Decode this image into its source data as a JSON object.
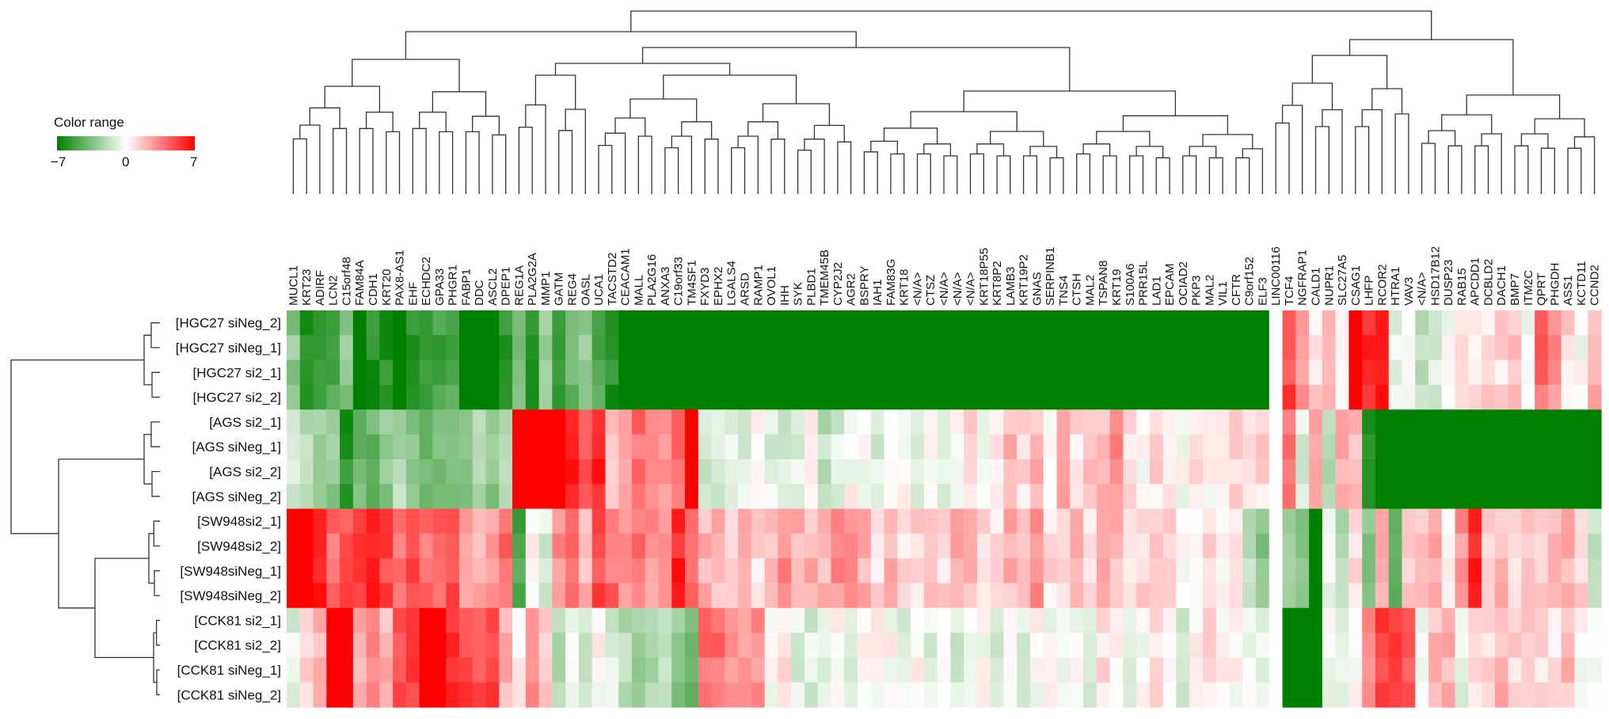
{
  "chart_data": {
    "type": "heatmap",
    "legend": {
      "title": "Color range",
      "min_label": "−7",
      "mid_label": "0",
      "max_label": "7",
      "min": -7,
      "max": 7,
      "colors": {
        "low": "#008000",
        "mid": "#ffffff",
        "high": "#ff0000"
      }
    },
    "rows": [
      "[HGC27 siNeg_2]",
      "[HGC27 siNeg_1]",
      "[HGC27 si2_1]",
      "[HGC27 si2_2]",
      "[AGS si2_1]",
      "[AGS siNeg_1]",
      "[AGS si2_2]",
      "[AGS siNeg_2]",
      "[SW948si2_1]",
      "[SW948si2_2]",
      "[SW948siNeg_1]",
      "[SW948siNeg_2]",
      "[CCK81 si2_1]",
      "[CCK81 si2_2]",
      "[CCK81 siNeg_1]",
      "[CCK81 siNeg_2]"
    ],
    "columns": [
      "MUCL1",
      "KRT23",
      "ADIRF",
      "LCN2",
      "C15orf48",
      "FAM84A",
      "CDH1",
      "KRT20",
      "PAX8-AS1",
      "EHF",
      "ECHDC2",
      "GPA33",
      "PHGR1",
      "FABP1",
      "DDC",
      "ASCL2",
      "DPEP1",
      "REG1A",
      "PLA2G2A",
      "MMP1",
      "GATM",
      "REG4",
      "OASL",
      "UCA1",
      "TACSTD2",
      "CEACAM1",
      "MALL",
      "PLA2G16",
      "ANXA3",
      "C19orf33",
      "TM4SF1",
      "FXYD3",
      "EPHX2",
      "LGALS4",
      "ARSD",
      "RAMP1",
      "OVOL1",
      "IHH",
      "SYK",
      "PLBD1",
      "TMEM45B",
      "CYP2J2",
      "AGR2",
      "BSPRY",
      "IAH1",
      "FAM83G",
      "KRT18",
      "<N/A>",
      "CTSZ",
      "<N/A>",
      "<N/A>",
      "<N/A>",
      "KRT18P55",
      "KRT8P2",
      "LAMB3",
      "KRT19P2",
      "GNAS",
      "SERPINB1",
      "TNS4",
      "CTSH",
      "MAL2",
      "TSPAN8",
      "KRT19",
      "S100A6",
      "PRR15L",
      "LAD1",
      "EPCAM",
      "OCIAD2",
      "PKP3",
      "MAL2",
      "VIL1",
      "CFTR",
      "C9orf152",
      "ELF3",
      "LINC00116",
      "TCF4",
      "NGFRAP1",
      "CALD1",
      "NUPR1",
      "SLC27A5",
      "CSAG1",
      "LHFP",
      "RCOR2",
      "HTRA1",
      "VAV3",
      "<N/A>",
      "HSD17B12",
      "DUSP23",
      "RAB15",
      "APCDD1",
      "DCBLD2",
      "DACH1",
      "BMP7",
      "ITM2C",
      "QPRT",
      "PHGDH",
      "ASS1",
      "KCTD11",
      "CCND2"
    ],
    "row_groups": [
      {
        "rows": [
          0,
          1,
          2,
          3
        ]
      },
      {
        "rows": [
          4,
          5,
          6,
          7
        ]
      },
      {
        "rows": [
          8,
          9,
          10,
          11
        ]
      },
      {
        "rows": [
          12,
          13,
          14,
          15
        ]
      }
    ],
    "group_column_values": [
      [
        -3,
        -6,
        -5,
        -5,
        -3,
        -7,
        -6,
        -6,
        -7,
        -6,
        -6,
        -5,
        -5,
        -7,
        -7,
        -7,
        -6,
        -4,
        -6,
        -3,
        -5,
        -4,
        -3,
        -5,
        -6,
        -7,
        -7,
        -7,
        -7,
        -7,
        -7,
        -7,
        -7,
        -7,
        -7,
        -7,
        -7,
        -7,
        -7,
        -7,
        -7,
        -7,
        -7,
        -7,
        -7,
        -7,
        -7,
        -7,
        -7,
        -7,
        -7,
        -7,
        -7,
        -7,
        -7,
        -7,
        -7,
        -7,
        -7,
        -7,
        -7,
        -7,
        -7,
        -7,
        -7,
        -7,
        -7,
        -7,
        -7,
        -7,
        -7,
        -7,
        -7,
        -7,
        0,
        5,
        3,
        1,
        2,
        0,
        7,
        6,
        6,
        -1,
        0,
        -2,
        -1,
        0,
        1,
        1,
        1,
        1,
        2,
        0,
        4,
        3,
        1,
        0,
        2
      ],
      [
        -1,
        -2,
        -3,
        -3,
        -6,
        -4,
        -4,
        -3,
        -2,
        -3,
        -4,
        -4,
        -3,
        -3,
        -2,
        -3,
        -2,
        7,
        7,
        7,
        7,
        6,
        5,
        6,
        2,
        3,
        4,
        3,
        3,
        4,
        7,
        -1,
        -1,
        -1,
        -1,
        0,
        -1,
        -1,
        -1,
        0,
        -2,
        -1,
        0,
        0,
        -1,
        0,
        0,
        -1,
        0,
        -1,
        0,
        1,
        0,
        1,
        2,
        1,
        2,
        0,
        2,
        1,
        2,
        2,
        3,
        1,
        0,
        1,
        1,
        0,
        1,
        0,
        1,
        1,
        1,
        1,
        0,
        4,
        -1,
        3,
        -2,
        2,
        2,
        -6,
        -7,
        -7,
        -7,
        -7,
        -7,
        -7,
        -7,
        -7,
        -7,
        -7,
        -7,
        -7,
        -7,
        -7,
        -7,
        -7,
        -7
      ],
      [
        7,
        7,
        6,
        4,
        5,
        5,
        6,
        5,
        4,
        5,
        4,
        4,
        5,
        3,
        2,
        3,
        4,
        -5,
        0,
        -1,
        3,
        4,
        2,
        5,
        4,
        3,
        4,
        3,
        3,
        6,
        4,
        2,
        2,
        1,
        2,
        1,
        2,
        3,
        2,
        2,
        2,
        3,
        3,
        2,
        1,
        2,
        1,
        1,
        2,
        1,
        2,
        2,
        1,
        1,
        2,
        2,
        3,
        1,
        1,
        2,
        1,
        2,
        2,
        1,
        1,
        1,
        1,
        0,
        0,
        1,
        0,
        1,
        -2,
        -3,
        0,
        -3,
        -3,
        -7,
        -1,
        -2,
        1,
        -3,
        2,
        -4,
        1,
        2,
        2,
        0,
        3,
        6,
        1,
        2,
        1,
        2,
        1,
        2,
        2,
        1,
        -2
      ],
      [
        -1,
        1,
        2,
        7,
        7,
        2,
        3,
        2,
        5,
        5,
        7,
        7,
        6,
        5,
        5,
        5,
        2,
        0,
        3,
        1,
        -2,
        0,
        -1,
        0,
        -1,
        -2,
        -3,
        -2,
        -2,
        -3,
        -4,
        4,
        4,
        3,
        3,
        3,
        0,
        1,
        -1,
        -1,
        -1,
        0,
        -1,
        0,
        0,
        0,
        -1,
        0,
        -1,
        0,
        -1,
        0,
        0,
        -1,
        0,
        -1,
        0,
        0,
        -1,
        0,
        -1,
        1,
        0,
        -1,
        0,
        1,
        0,
        -1,
        0,
        1,
        0,
        0,
        0,
        -1,
        0,
        -7,
        -7,
        -7,
        0,
        -1,
        0,
        3,
        5,
        5,
        5,
        0,
        2,
        2,
        -1,
        1,
        1,
        2,
        1,
        1,
        1,
        1,
        2,
        0,
        0
      ]
    ]
  }
}
